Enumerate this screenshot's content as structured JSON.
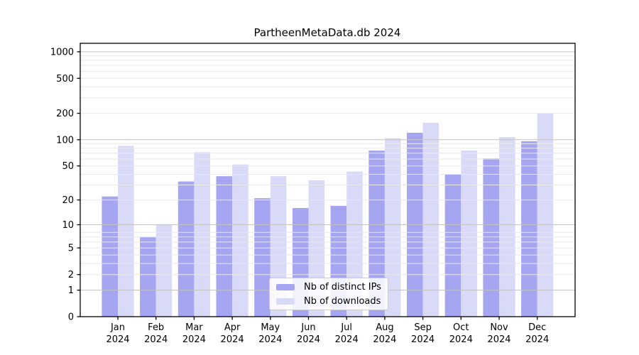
{
  "chart_data": {
    "type": "bar",
    "title": "PartheenMetaData.db 2024",
    "categories": [
      "Jan",
      "Feb",
      "Mar",
      "Apr",
      "May",
      "Jun",
      "Jul",
      "Aug",
      "Sep",
      "Oct",
      "Nov",
      "Dec"
    ],
    "x_tick_second_line": "2024",
    "series": [
      {
        "name": "Nb of distinct IPs",
        "color": "#a5a5f1",
        "values": [
          22,
          7,
          33,
          38,
          21,
          16,
          17,
          75,
          120,
          40,
          61,
          96
        ]
      },
      {
        "name": "Nb of downloads",
        "color": "#d9d9f8",
        "values": [
          85,
          10,
          72,
          52,
          38,
          34,
          43,
          104,
          156,
          75,
          107,
          200
        ]
      }
    ],
    "xlabel": "",
    "ylabel": "",
    "y_ticks": [
      0,
      1,
      2,
      5,
      10,
      20,
      50,
      100,
      200,
      500,
      1000
    ],
    "ylim": [
      0,
      1150
    ],
    "yscale": "log10(1+x)",
    "grid": true,
    "grid_on_top_of_bars": true,
    "legend_position": "lower center",
    "colors": {
      "major_gridline": "#c3c3c3",
      "minor_gridline": "#e9e9e9",
      "axis": "#000000",
      "title_text": "#111111"
    }
  }
}
